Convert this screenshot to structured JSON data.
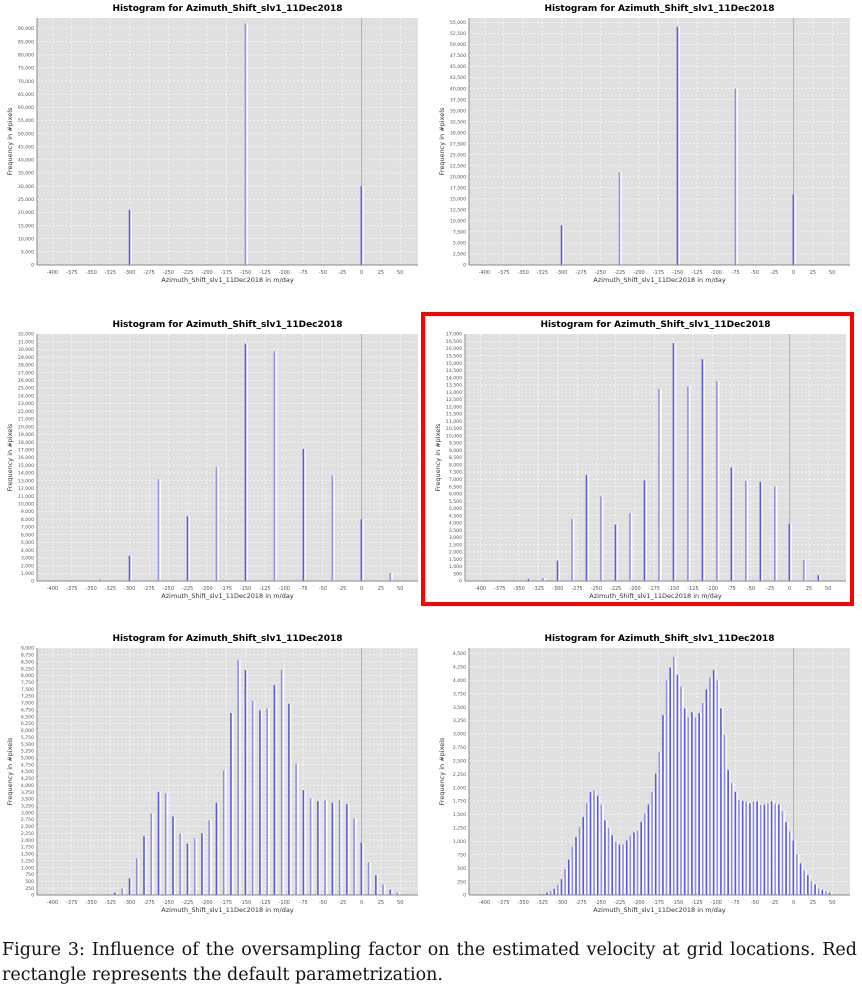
{
  "figure": {
    "caption": "Figure 3: Influence of the oversampling factor on the estimated velocity at grid locations. Red rectangle represents the default parametrization.",
    "highlight_color": "#ff0000",
    "highlighted_panel": 3
  },
  "chart_data": [
    {
      "type": "bar",
      "title": "Histogram for Azimuth_Shift_slv1_11Dec2018",
      "xlabel": "Azimuth_Shift_slv1_11Dec2018 in m/day",
      "ylabel": "Frequency in #pixels",
      "xlim": [
        -420,
        73
      ],
      "xticks_step": 25,
      "xticks_range": [
        -400,
        50
      ],
      "ylim": [
        0,
        94000
      ],
      "yticks_step": 5000,
      "yticks_max": 90000,
      "grid": true,
      "bar_color": "#5050e0",
      "bin_start": -300,
      "bin_width": 150,
      "values": [
        21000,
        92000,
        30000
      ]
    },
    {
      "type": "bar",
      "title": "Histogram for Azimuth_Shift_slv1_11Dec2018",
      "xlabel": "Azimuth_Shift_slv1_11Dec2018 in m/day",
      "ylabel": "Frequency in #pixels",
      "xlim": [
        -420,
        73
      ],
      "xticks_step": 25,
      "xticks_range": [
        -400,
        50
      ],
      "ylim": [
        0,
        56000
      ],
      "yticks_step": 2500,
      "yticks_max": 55000,
      "grid": true,
      "bar_color": "#5050e0",
      "bin_start": -300,
      "bin_width": 75,
      "values": [
        9000,
        21000,
        54000,
        40000,
        16000
      ]
    },
    {
      "type": "bar",
      "title": "Histogram for Azimuth_Shift_slv1_11Dec2018",
      "xlabel": "Azimuth_Shift_slv1_11Dec2018 in m/day",
      "ylabel": "Frequency in #pixels",
      "xlim": [
        -420,
        73
      ],
      "xticks_step": 25,
      "xticks_range": [
        -400,
        50
      ],
      "ylim": [
        0,
        32000
      ],
      "yticks_step": 1000,
      "yticks_max": 32000,
      "grid": true,
      "bar_color": "#5050e0",
      "bin_start": -375,
      "bin_width": 37.5,
      "values": [
        100,
        200,
        3300,
        13200,
        8400,
        14750,
        30750,
        29750,
        17100,
        13650,
        8000,
        1050
      ]
    },
    {
      "type": "bar",
      "title": "Histogram for Azimuth_Shift_slv1_11Dec2018",
      "xlabel": "Azimuth_Shift_slv1_11Dec2018 in m/day",
      "ylabel": "Frequency in #pixels",
      "xlim": [
        -420,
        73
      ],
      "xticks_step": 25,
      "xticks_range": [
        -400,
        50
      ],
      "ylim": [
        0,
        17000
      ],
      "yticks_step": 500,
      "yticks_max": 17000,
      "grid": true,
      "bar_color": "#5050e0",
      "bin_start": -375,
      "bin_width": 18.75,
      "values": [
        50,
        70,
        150,
        200,
        1400,
        4270,
        7300,
        5830,
        3890,
        4670,
        6920,
        13200,
        16380,
        13390,
        15260,
        13750,
        7820,
        6900,
        6830,
        6520,
        3930,
        1450,
        400
      ]
    },
    {
      "type": "bar",
      "title": "Histogram for Azimuth_Shift_slv1_11Dec2018",
      "xlabel": "Azimuth_Shift_slv1_11Dec2018 in m/day",
      "ylabel": "Frequency in #pixels",
      "xlim": [
        -420,
        73
      ],
      "xticks_step": 25,
      "xticks_range": [
        -400,
        50
      ],
      "ylim": [
        0,
        9000
      ],
      "yticks_step": 250,
      "yticks_max": 9000,
      "grid": true,
      "bar_color": "#5050e0",
      "bin_start": -375,
      "bin_width": 9.375,
      "values": [
        10,
        10,
        10,
        10,
        10,
        25,
        85,
        245,
        610,
        1340,
        2140,
        2970,
        3760,
        3700,
        2860,
        2240,
        1870,
        2060,
        2250,
        2720,
        3360,
        4540,
        6630,
        8560,
        8200,
        7080,
        6730,
        6790,
        7650,
        8220,
        6970,
        4790,
        3820,
        3520,
        3420,
        3450,
        3360,
        3450,
        3310,
        2790,
        1910,
        1190,
        720,
        380,
        195,
        100
      ]
    },
    {
      "type": "bar",
      "title": "Histogram for Azimuth_Shift_slv1_11Dec2018",
      "xlabel": "Azimuth_Shift_slv1_11Dec2018 in m/day",
      "ylabel": "Frequency in #pixels",
      "xlim": [
        -420,
        73
      ],
      "xticks_step": 25,
      "xticks_range": [
        -400,
        50
      ],
      "ylim": [
        0,
        4600
      ],
      "yticks_step": 250,
      "yticks_max": 4500,
      "grid": true,
      "bar_color": "#5050e0",
      "bin_start": -365.625,
      "bin_width": 4.6875,
      "values": [
        3,
        3,
        5,
        5,
        5,
        8,
        8,
        10,
        15,
        20,
        45,
        75,
        115,
        190,
        295,
        485,
        660,
        900,
        1080,
        1265,
        1455,
        1710,
        1915,
        1950,
        1850,
        1685,
        1390,
        1250,
        1110,
        990,
        940,
        940,
        1015,
        1110,
        1165,
        1195,
        1360,
        1515,
        1685,
        1920,
        2260,
        2660,
        3350,
        4000,
        4240,
        4430,
        4100,
        3880,
        3475,
        3310,
        3405,
        3305,
        3390,
        3575,
        3830,
        4050,
        4190,
        4000,
        3475,
        2985,
        2330,
        2090,
        1920,
        1770,
        1755,
        1745,
        1705,
        1745,
        1745,
        1680,
        1680,
        1705,
        1745,
        1700,
        1685,
        1565,
        1355,
        1185,
        1015,
        755,
        590,
        455,
        370,
        260,
        195,
        125,
        95,
        70,
        45
      ]
    }
  ]
}
